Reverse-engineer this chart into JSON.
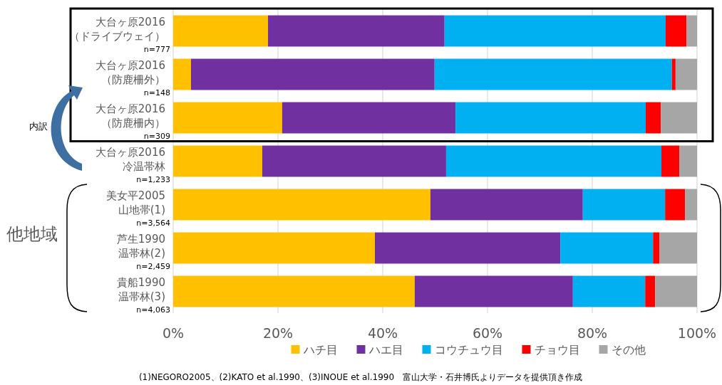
{
  "chart_data": {
    "type": "bar",
    "orientation": "horizontal",
    "stacked": true,
    "categories": [
      "大台ヶ原2016\n（ドライブウェイ）\nn=777",
      "大台ヶ原2016\n（防鹿柵外）\nn=148",
      "大台ヶ原2016\n（防鹿柵内）\nn=309",
      "大台ヶ原2016\n冷温帯林\nn=1,233",
      "美女平2005\n山地帯(1)\nn=3,564",
      "芦生1990\n温帯林(2)\nn=2,459",
      "貴船1990\n温帯林(3)\nn=4,063"
    ],
    "series": [
      {
        "name": "ハチ目",
        "color": "#ffc000",
        "values": [
          18.1,
          3.4,
          20.8,
          17.0,
          49.1,
          38.5,
          46.1
        ]
      },
      {
        "name": "ハエ目",
        "color": "#7030a0",
        "values": [
          33.7,
          46.5,
          33.1,
          35.1,
          29.1,
          35.4,
          30.2
        ]
      },
      {
        "name": "コウチュウ目",
        "color": "#00b0f0",
        "values": [
          42.2,
          45.3,
          36.3,
          41.1,
          15.7,
          17.7,
          13.8
        ]
      },
      {
        "name": "チョウ目",
        "color": "#ff0000",
        "values": [
          4.0,
          0.7,
          2.9,
          3.4,
          3.8,
          1.2,
          1.9
        ]
      },
      {
        "name": "その他",
        "color": "#a6a6a6",
        "values": [
          2.0,
          4.1,
          6.9,
          3.4,
          2.3,
          7.2,
          8.0
        ]
      }
    ],
    "xlim": [
      0,
      100
    ],
    "xticks": [
      {
        "value": 0,
        "label": "0%"
      },
      {
        "value": 20,
        "label": "20%"
      },
      {
        "value": 40,
        "label": "40%"
      },
      {
        "value": 60,
        "label": "60%"
      },
      {
        "value": 80,
        "label": "80%"
      },
      {
        "value": 100,
        "label": "100%"
      }
    ],
    "grid": "x",
    "legend": "bottom",
    "annotations": [
      "内訳",
      "他地域",
      "(1)NEGORO2005、(2)KATO et al.1990、(3)INOUE et al.1990　富山大学・石井博氏よりデータを提供頂き作成"
    ]
  }
}
